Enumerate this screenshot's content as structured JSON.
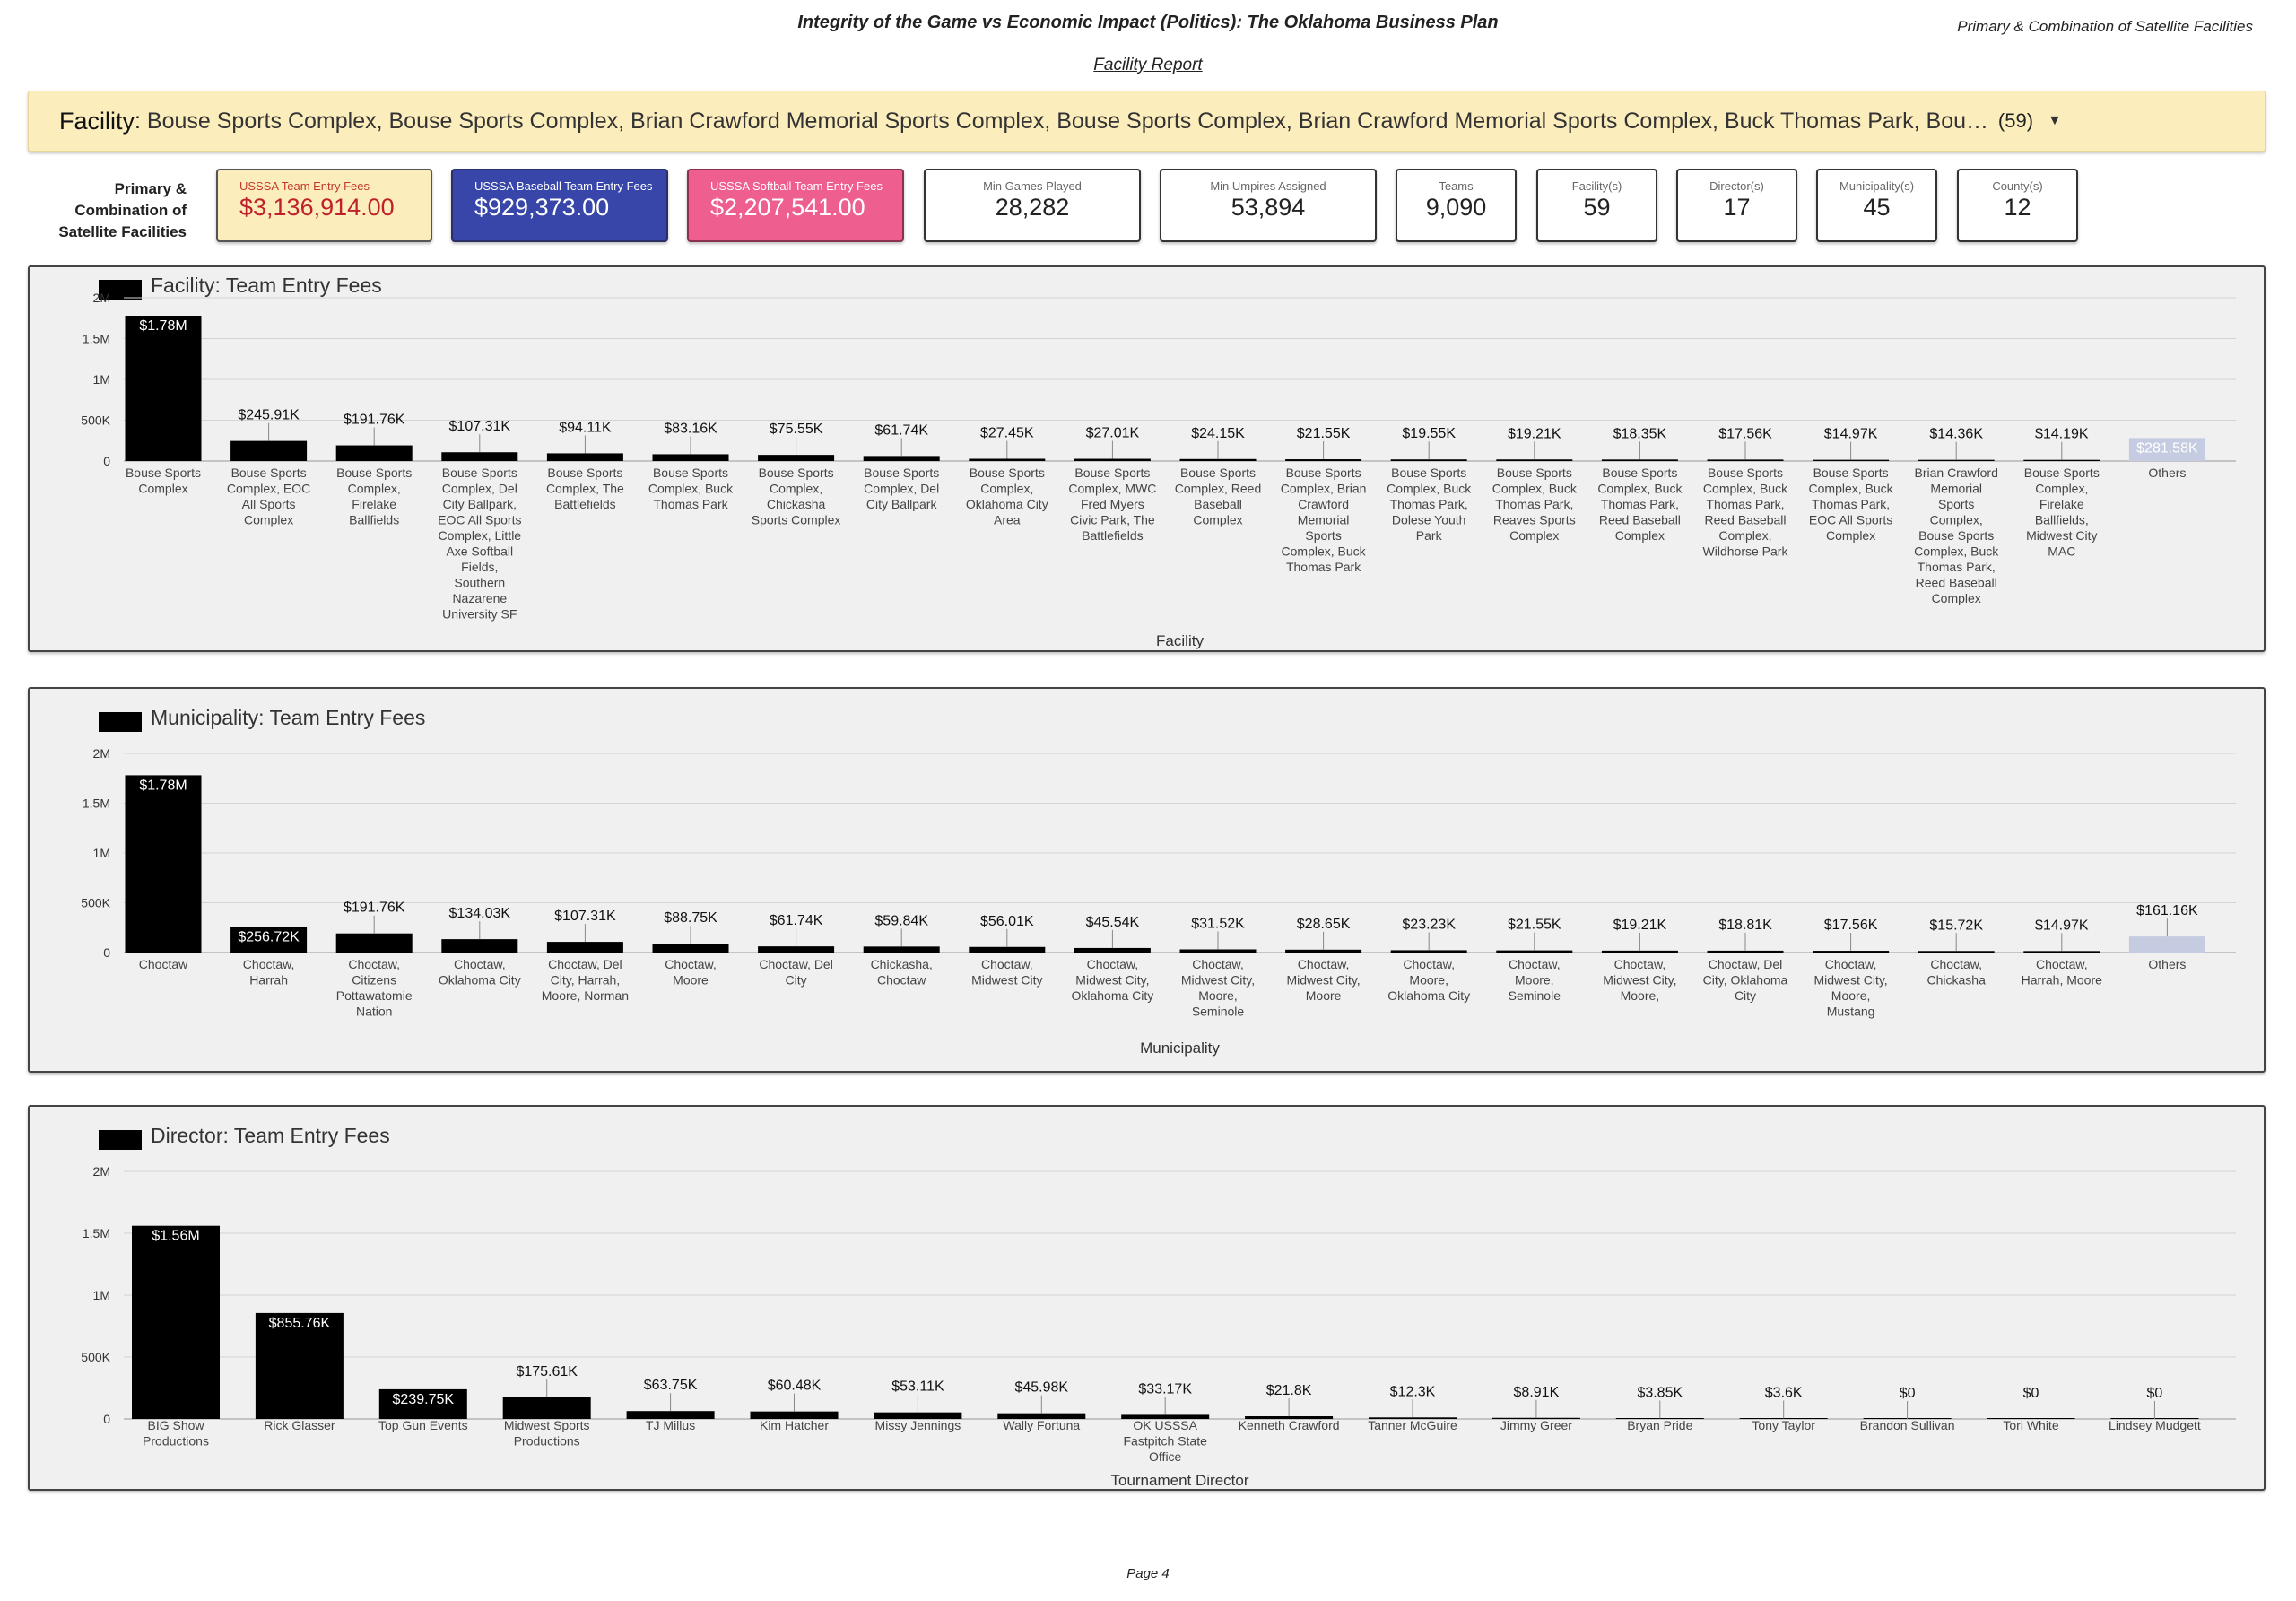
{
  "report": {
    "title": "Integrity of the Game vs Economic Impact (Politics): The Oklahoma Business Plan",
    "subtitle": "Facility Report",
    "top_right_note": "Primary & Combination of Satellite Facilities",
    "footer": "Page 4"
  },
  "facility_filter": {
    "label": "Facility",
    "value": "Bouse Sports Complex, Bouse Sports Complex, Brian Crawford Memorial Sports Complex, Bouse Sports Complex, Brian Crawford Memorial Sports Complex, Buck Thomas Park, Bouse Sports Complex, Brian",
    "count": "(59)"
  },
  "kpi_label": "Primary & Combination of Satellite Facilities",
  "kpis": [
    {
      "name": "USSSA Team Entry Fees",
      "value": "$3,136,914.00"
    },
    {
      "name": "USSSA Baseball Team Entry Fees",
      "value": "$929,373.00"
    },
    {
      "name": "USSSA Softball Team Entry Fees",
      "value": "$2,207,541.00"
    },
    {
      "name": "Min Games Played",
      "value": "28,282"
    },
    {
      "name": "Min Umpires Assigned",
      "value": "53,894"
    },
    {
      "name": "Teams",
      "value": "9,090"
    },
    {
      "name": "Facility(s)",
      "value": "59"
    },
    {
      "name": "Director(s)",
      "value": "17"
    },
    {
      "name": "Municipality(s)",
      "value": "45"
    },
    {
      "name": "County(s)",
      "value": "12"
    }
  ],
  "colors": {
    "bar": "#000000",
    "others_bar": "#c5cbe0",
    "team_fees_card": "#fcedbd",
    "baseball_card": "#3746a8",
    "softball_card": "#ee5e8e",
    "filter_bg": "#fcedbd"
  },
  "chart_data": [
    {
      "type": "bar",
      "title": "Facility: Team Entry Fees",
      "xlabel": "Facility",
      "ylabel": "",
      "ylim": [
        0,
        2000000
      ],
      "yticks": [
        "0",
        "500K",
        "1M",
        "1.5M",
        "2M"
      ],
      "grid": true,
      "categories": [
        [
          "Bouse Sports",
          "Complex"
        ],
        [
          "Bouse Sports",
          "Complex, EOC",
          "All Sports",
          "Complex"
        ],
        [
          "Bouse Sports",
          "Complex,",
          "Firelake",
          "Ballfields"
        ],
        [
          "Bouse Sports",
          "Complex, Del",
          "City Ballpark,",
          "EOC All Sports",
          "Complex, Little",
          "Axe Softball",
          "Fields,",
          "Southern",
          "Nazarene",
          "University SF"
        ],
        [
          "Bouse Sports",
          "Complex, The",
          "Battlefields"
        ],
        [
          "Bouse Sports",
          "Complex, Buck",
          "Thomas Park"
        ],
        [
          "Bouse Sports",
          "Complex,",
          "Chickasha",
          "Sports Complex"
        ],
        [
          "Bouse Sports",
          "Complex, Del",
          "City Ballpark"
        ],
        [
          "Bouse Sports",
          "Complex,",
          "Oklahoma City",
          "Area"
        ],
        [
          "Bouse Sports",
          "Complex, MWC",
          "Fred Myers",
          "Civic Park, The",
          "Battlefields"
        ],
        [
          "Bouse Sports",
          "Complex, Reed",
          "Baseball",
          "Complex"
        ],
        [
          "Bouse Sports",
          "Complex, Brian",
          "Crawford",
          "Memorial",
          "Sports",
          "Complex, Buck",
          "Thomas Park"
        ],
        [
          "Bouse Sports",
          "Complex, Buck",
          "Thomas Park,",
          "Dolese Youth",
          "Park"
        ],
        [
          "Bouse Sports",
          "Complex, Buck",
          "Thomas Park,",
          "Reaves Sports",
          "Complex"
        ],
        [
          "Bouse Sports",
          "Complex, Buck",
          "Thomas Park,",
          "Reed Baseball",
          "Complex"
        ],
        [
          "Bouse Sports",
          "Complex, Buck",
          "Thomas Park,",
          "Reed Baseball",
          "Complex,",
          "Wildhorse Park"
        ],
        [
          "Bouse Sports",
          "Complex, Buck",
          "Thomas Park,",
          "EOC All Sports",
          "Complex"
        ],
        [
          "Brian Crawford",
          "Memorial",
          "Sports",
          "Complex,",
          "Bouse Sports",
          "Complex, Buck",
          "Thomas Park,",
          "Reed Baseball",
          "Complex"
        ],
        [
          "Bouse Sports",
          "Complex,",
          "Firelake",
          "Ballfields,",
          "Midwest City",
          "MAC"
        ],
        [
          "Others"
        ]
      ],
      "values": [
        1780000,
        245910,
        191760,
        107310,
        94110,
        83160,
        75550,
        61740,
        27450,
        27010,
        24150,
        21550,
        19550,
        19210,
        18350,
        17560,
        14970,
        14360,
        14190,
        281580
      ],
      "data_labels": [
        "$1.78M",
        "$245.91K",
        "$191.76K",
        "$107.31K",
        "$94.11K",
        "$83.16K",
        "$75.55K",
        "$61.74K",
        "$27.45K",
        "$27.01K",
        "$24.15K",
        "$21.55K",
        "$19.55K",
        "$19.21K",
        "$18.35K",
        "$17.56K",
        "$14.97K",
        "$14.36K",
        "$14.19K",
        "$281.58K"
      ]
    },
    {
      "type": "bar",
      "title": "Municipality: Team Entry Fees",
      "xlabel": "Municipality",
      "ylabel": "",
      "ylim": [
        0,
        2000000
      ],
      "yticks": [
        "0",
        "500K",
        "1M",
        "1.5M",
        "2M"
      ],
      "grid": true,
      "categories": [
        [
          "Choctaw"
        ],
        [
          "Choctaw,",
          "Harrah"
        ],
        [
          "Choctaw,",
          "Citizens",
          "Pottawatomie",
          "Nation"
        ],
        [
          "Choctaw,",
          "Oklahoma City"
        ],
        [
          "Choctaw, Del",
          "City, Harrah,",
          "Moore, Norman"
        ],
        [
          "Choctaw,",
          "Moore"
        ],
        [
          "Choctaw, Del",
          "City"
        ],
        [
          "Chickasha,",
          "Choctaw"
        ],
        [
          "Choctaw,",
          "Midwest City"
        ],
        [
          "Choctaw,",
          "Midwest City,",
          "Oklahoma City"
        ],
        [
          "Choctaw,",
          "Midwest City,",
          "Moore,",
          "Seminole"
        ],
        [
          "Choctaw,",
          "Midwest City,",
          "Moore"
        ],
        [
          "Choctaw,",
          "Moore,",
          "Oklahoma City"
        ],
        [
          "Choctaw,",
          "Moore,",
          "Seminole"
        ],
        [
          "Choctaw,",
          "Midwest City,",
          "Moore,"
        ],
        [
          "Choctaw, Del",
          "City, Oklahoma",
          "City"
        ],
        [
          "Choctaw,",
          "Midwest City,",
          "Moore,",
          "Mustang"
        ],
        [
          "Choctaw,",
          "Chickasha"
        ],
        [
          "Choctaw,",
          "Harrah, Moore"
        ],
        [
          "Others"
        ]
      ],
      "values": [
        1780000,
        256720,
        191760,
        134030,
        107310,
        88750,
        61740,
        59840,
        56010,
        45540,
        31520,
        28650,
        23230,
        21550,
        19210,
        18810,
        17560,
        15720,
        14970,
        161160
      ],
      "data_labels": [
        "$1.78M",
        "$256.72K",
        "$191.76K",
        "$134.03K",
        "$107.31K",
        "$88.75K",
        "$61.74K",
        "$59.84K",
        "$56.01K",
        "$45.54K",
        "$31.52K",
        "$28.65K",
        "$23.23K",
        "$21.55K",
        "$19.21K",
        "$18.81K",
        "$17.56K",
        "$15.72K",
        "$14.97K",
        "$161.16K"
      ]
    },
    {
      "type": "bar",
      "title": "Director: Team Entry Fees",
      "xlabel": "Tournament Director",
      "ylabel": "",
      "ylim": [
        0,
        2000000
      ],
      "yticks": [
        "0",
        "500K",
        "1M",
        "1.5M",
        "2M"
      ],
      "grid": true,
      "categories": [
        [
          "BIG Show",
          "Productions"
        ],
        [
          "Rick Glasser"
        ],
        [
          "Top Gun Events"
        ],
        [
          "Midwest Sports",
          "Productions"
        ],
        [
          "TJ Millus"
        ],
        [
          "Kim Hatcher"
        ],
        [
          "Missy Jennings"
        ],
        [
          "Wally Fortuna"
        ],
        [
          "OK USSSA",
          "Fastpitch State",
          "Office"
        ],
        [
          "Kenneth Crawford"
        ],
        [
          "Tanner McGuire"
        ],
        [
          "Jimmy Greer"
        ],
        [
          "Bryan Pride"
        ],
        [
          "Tony Taylor"
        ],
        [
          "Brandon Sullivan"
        ],
        [
          "Tori White"
        ],
        [
          "Lindsey Mudgett"
        ]
      ],
      "values": [
        1560000,
        855760,
        239750,
        175610,
        63750,
        60480,
        53110,
        45980,
        33170,
        21800,
        12300,
        8910,
        3850,
        3600,
        0,
        0,
        0
      ],
      "data_labels": [
        "$1.56M",
        "$855.76K",
        "$239.75K",
        "$175.61K",
        "$63.75K",
        "$60.48K",
        "$53.11K",
        "$45.98K",
        "$33.17K",
        "$21.8K",
        "$12.3K",
        "$8.91K",
        "$3.85K",
        "$3.6K",
        "$0",
        "$0",
        "$0"
      ]
    }
  ]
}
